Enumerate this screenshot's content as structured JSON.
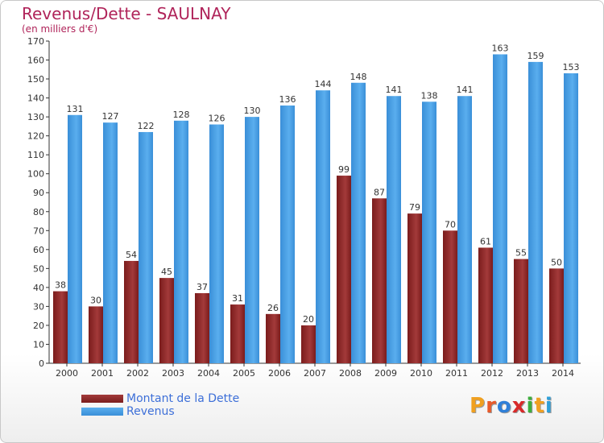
{
  "title": "Revenus/Dette - SAULNAY",
  "subtitle": "(en milliers d'€)",
  "logo": {
    "letters": [
      "P",
      "r",
      "o",
      "x",
      "i",
      "t",
      "i"
    ],
    "colors": [
      "#f0a020",
      "#e85a2a",
      "#2f7fd8",
      "#d82a2a",
      "#3cae3c",
      "#f0a020",
      "#2f9fd8"
    ]
  },
  "legend": [
    {
      "label": "Montant de la Dette",
      "color": "#7a1c1c"
    },
    {
      "label": "Revenus",
      "color": "#3a8fd8"
    }
  ],
  "colors": {
    "dette": "#7a1c1c",
    "dette_light": "#a33a3a",
    "revenus": "#3a8fd8",
    "revenus_light": "#5aaeee",
    "grid": "#333333"
  },
  "chart_data": {
    "type": "bar",
    "categories": [
      "2000",
      "2001",
      "2002",
      "2003",
      "2004",
      "2005",
      "2006",
      "2007",
      "2008",
      "2009",
      "2010",
      "2011",
      "2012",
      "2013",
      "2014"
    ],
    "series": [
      {
        "name": "Montant de la Dette",
        "values": [
          38,
          30,
          54,
          45,
          37,
          31,
          26,
          20,
          99,
          87,
          79,
          70,
          61,
          55,
          50
        ]
      },
      {
        "name": "Revenus",
        "values": [
          131,
          127,
          122,
          128,
          126,
          130,
          136,
          144,
          148,
          141,
          138,
          141,
          163,
          159,
          153
        ]
      }
    ],
    "ylim": [
      0,
      170
    ],
    "yticks": [
      0,
      10,
      20,
      30,
      40,
      50,
      60,
      70,
      80,
      90,
      100,
      110,
      120,
      130,
      140,
      150,
      160,
      170
    ],
    "grid": false,
    "legend_position": "bottom-left"
  }
}
